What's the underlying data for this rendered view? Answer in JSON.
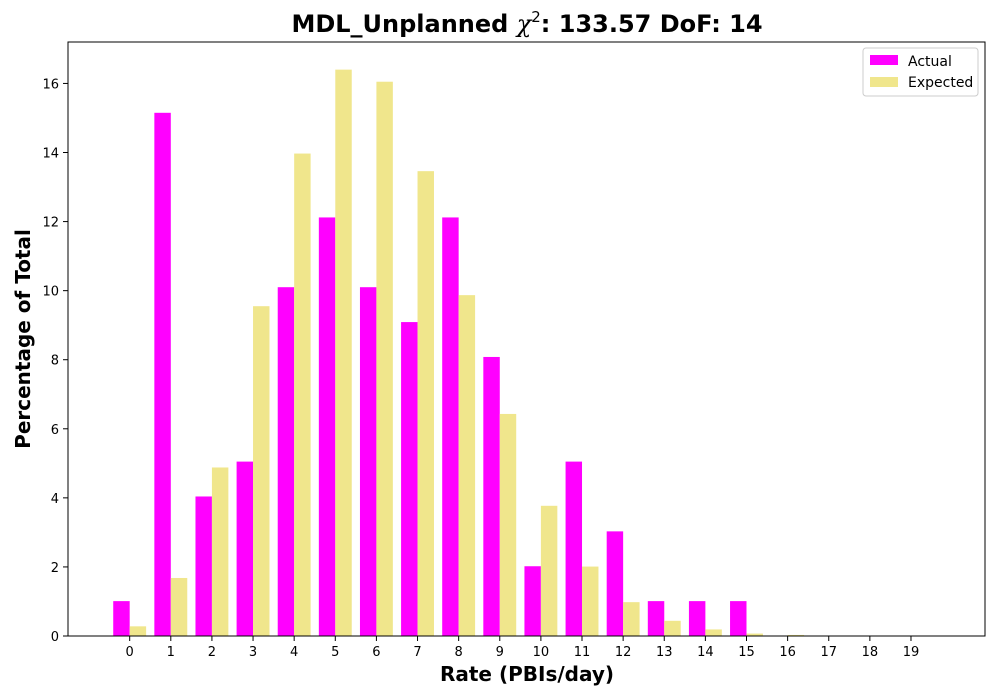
{
  "chart_data": {
    "type": "bar",
    "title": {
      "prefix": "MDL_Unplanned ",
      "chi_symbol": "χ",
      "chi_superscript": "2",
      "suffix": ": 133.57 DoF: 14"
    },
    "xlabel": "Rate (PBIs/day)",
    "ylabel": "Percentage of Total",
    "categories": [
      "0",
      "1",
      "2",
      "3",
      "4",
      "5",
      "6",
      "7",
      "8",
      "9",
      "10",
      "11",
      "12",
      "13",
      "14",
      "15",
      "16",
      "17",
      "18",
      "19"
    ],
    "series": [
      {
        "name": "Actual",
        "color": "#ff00ff",
        "values": [
          1.01,
          15.15,
          4.04,
          5.05,
          10.1,
          12.12,
          10.1,
          9.09,
          12.12,
          8.08,
          2.02,
          5.05,
          3.03,
          1.01,
          1.01,
          1.01,
          0,
          0,
          0,
          0
        ]
      },
      {
        "name": "Expected",
        "color": "#f0e68c",
        "values": [
          0.28,
          1.68,
          4.88,
          9.55,
          13.97,
          16.4,
          16.05,
          13.46,
          9.87,
          6.43,
          3.77,
          2.01,
          0.98,
          0.44,
          0.19,
          0.07,
          0.03,
          0.01,
          0.0,
          0.0
        ]
      }
    ],
    "yticks": [
      0,
      2,
      4,
      6,
      8,
      10,
      12,
      14,
      16
    ],
    "ylim": [
      0,
      17.2
    ],
    "xlim": [
      -1.5,
      20.8
    ],
    "grid": false,
    "legend_position": "top-right"
  }
}
